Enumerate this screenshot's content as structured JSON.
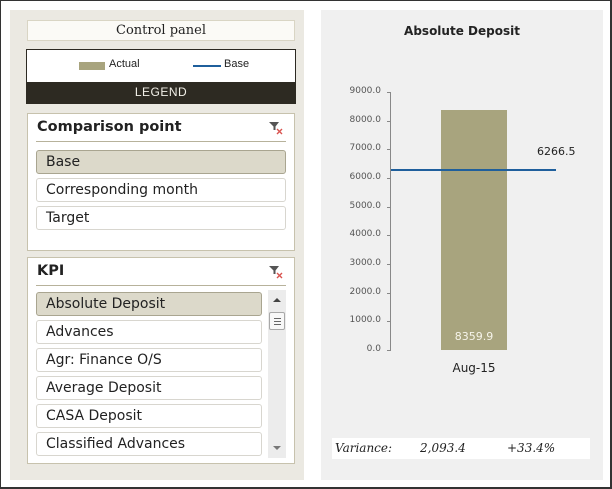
{
  "control_panel": {
    "title": "Control panel",
    "legend": {
      "items": [
        {
          "label": "Actual",
          "type": "swatch",
          "color": "#a8a47e"
        },
        {
          "label": "Base",
          "type": "line",
          "color": "#1f5f9c"
        }
      ],
      "caption": "LEGEND"
    },
    "comparison_slicer": {
      "title": "Comparison point",
      "clear_icon": "filter-clear-icon",
      "items": [
        {
          "label": "Base",
          "selected": true
        },
        {
          "label": "Corresponding month",
          "selected": false
        },
        {
          "label": "Target",
          "selected": false
        }
      ]
    },
    "kpi_slicer": {
      "title": "KPI",
      "clear_icon": "filter-clear-icon",
      "items": [
        {
          "label": "Absolute Deposit",
          "selected": true
        },
        {
          "label": "Advances",
          "selected": false
        },
        {
          "label": "Agr: Finance O/S",
          "selected": false
        },
        {
          "label": "Average Deposit",
          "selected": false
        },
        {
          "label": "CASA Deposit",
          "selected": false
        },
        {
          "label": "Classified Advances",
          "selected": false
        }
      ]
    }
  },
  "chart": {
    "title": "Absolute Deposit",
    "bar_value_label": "8359.9",
    "base_value_label": "6266.5",
    "x_label": "Aug-15",
    "y_ticks": [
      "9000.0",
      "8000.0",
      "7000.0",
      "6000.0",
      "5000.0",
      "4000.0",
      "3000.0",
      "2000.0",
      "1000.0",
      "0.0"
    ]
  },
  "variance": {
    "label": "Variance:",
    "absolute": "2,093.4",
    "percent": "+33.4%"
  },
  "colors": {
    "actual": "#a8a47e",
    "base": "#1f5f9c",
    "legend_bar": "#2d2a22",
    "panel_bg": "#ebe9e2",
    "chart_bg": "#f0f0f0",
    "selected_item": "#dcd9ca"
  },
  "chart_data": {
    "type": "bar",
    "title": "Absolute Deposit",
    "categories": [
      "Aug-15"
    ],
    "series": [
      {
        "name": "Actual",
        "type": "bar",
        "values": [
          8359.9
        ]
      },
      {
        "name": "Base",
        "type": "line",
        "values": [
          6266.5
        ]
      }
    ],
    "xlabel": "",
    "ylabel": "",
    "ylim": [
      0,
      9000
    ],
    "y_tick_step": 1000,
    "legend": [
      "Actual",
      "Base"
    ],
    "annotations": [
      "8359.9",
      "6266.5"
    ],
    "variance": {
      "absolute": 2093.4,
      "percent": 33.4
    }
  }
}
